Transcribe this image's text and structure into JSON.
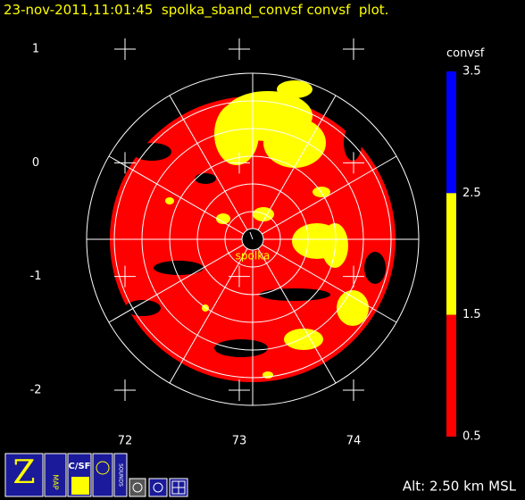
{
  "header": {
    "title": "23-nov-2011,11:01:45  spolka_sband_convsf convsf  plot."
  },
  "map": {
    "xticks": [
      72,
      73,
      74
    ],
    "yticks": [
      1,
      0,
      -1,
      -2
    ],
    "station": "spolka"
  },
  "colorbar": {
    "label": "convsf",
    "ticks": [
      3.5,
      2.5,
      1.5,
      0.5
    ],
    "colors": [
      "#0000ff",
      "#ffff00",
      "#ff0000"
    ]
  },
  "footer": {
    "altitude": "Alt: 2.50 km MSL"
  },
  "toolbar": {
    "labels": [
      "MAP",
      "C/SF",
      "SOUNDS"
    ]
  }
}
